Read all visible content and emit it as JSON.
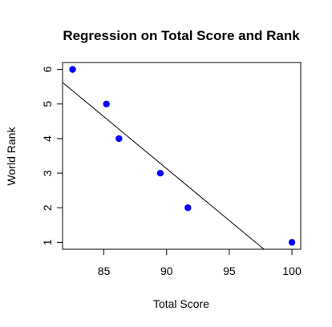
{
  "chart_data": {
    "type": "scatter",
    "title": "Regression on Total Score and Rank",
    "xlabel": "Total Score",
    "ylabel": "World Rank",
    "xlim": [
      81.7,
      100.7
    ],
    "ylim": [
      0.8,
      6.2
    ],
    "x_ticks": [
      85,
      90,
      95,
      100
    ],
    "x_tick_labels": [
      "85",
      "90",
      "95",
      "100"
    ],
    "y_ticks": [
      1,
      2,
      3,
      4,
      5,
      6
    ],
    "y_tick_labels": [
      "1",
      "2",
      "3",
      "4",
      "5",
      "6"
    ],
    "grid": false,
    "legend": "none",
    "point_color": "#0000ff",
    "line_color": "#000000",
    "series": [
      {
        "points": [
          {
            "x": 82.5,
            "y": 6
          },
          {
            "x": 85.2,
            "y": 5
          },
          {
            "x": 86.2,
            "y": 4
          },
          {
            "x": 89.5,
            "y": 3
          },
          {
            "x": 91.7,
            "y": 2
          },
          {
            "x": 100.0,
            "y": 1
          }
        ]
      }
    ],
    "regression_line": {
      "slope": -0.3002,
      "intercept": 30.15
    }
  }
}
